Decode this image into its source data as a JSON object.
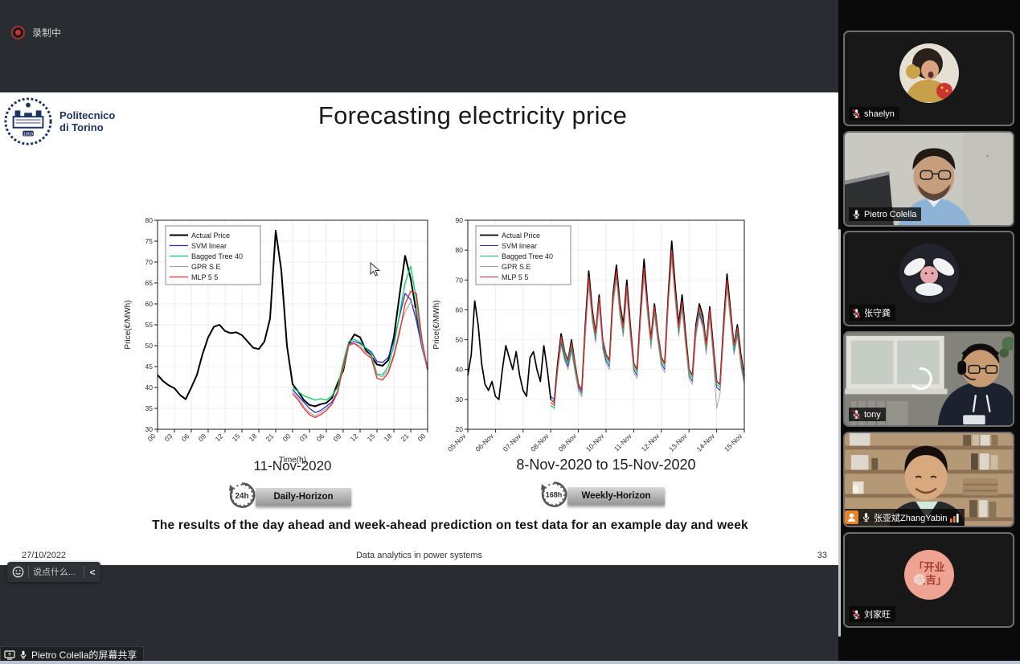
{
  "app": {
    "recording_label": "录制中",
    "screen_share_label": "Pietro Colella的屏幕共享",
    "chat": {
      "placeholder": "说点什么...",
      "collapse_icon": "<"
    }
  },
  "slide": {
    "logo": {
      "line1": "Politecnico",
      "line2": "di Torino",
      "year": "1859"
    },
    "title": "Forecasting electricity price",
    "caption": "The results of the day ahead and week-ahead prediction on test data for an example day and week",
    "figures": {
      "left_label": "11-Nov-2020",
      "right_label": "8-Nov-2020 to 15-Nov-2020",
      "daily_badge": {
        "icon_text": "24h",
        "label": "Daily-Horizon"
      },
      "weekly_badge": {
        "icon_text": "168h",
        "label": "Weekly-Horizon"
      }
    },
    "footer": {
      "date": "27/10/2022",
      "center": "Data analytics in power systems",
      "page": "33"
    }
  },
  "sidebar": {
    "participants": [
      {
        "name": "shaelyn",
        "muted": true,
        "video": false
      },
      {
        "name": "Pietro Colella",
        "muted": false,
        "video": true
      },
      {
        "name": "张守龚",
        "muted": true,
        "video": false
      },
      {
        "name": "tony",
        "muted": true,
        "video": true
      },
      {
        "name": "张亚斌ZhangYabin",
        "muted": false,
        "video": true,
        "host_badge": true,
        "signal_bars": true
      },
      {
        "name": "刘家旺",
        "muted": true,
        "video": false
      }
    ]
  },
  "colors": {
    "actual": "#000000",
    "svm": "#2a2ad4",
    "bagged": "#00d060",
    "gpr": "#a0a0a0",
    "mlp": "#e82c2c",
    "accent_orange": "#e8832a",
    "mute_red": "#e02020"
  },
  "chart_data": [
    {
      "type": "line",
      "title": "",
      "xlabel": "Time(h)",
      "ylabel": "Price(€/MWh)",
      "xlim": [
        0,
        48
      ],
      "ylim": [
        30,
        80
      ],
      "yticks": [
        30,
        35,
        40,
        45,
        50,
        55,
        60,
        65,
        70,
        75,
        80
      ],
      "xticks": [
        0,
        3,
        6,
        9,
        12,
        15,
        18,
        21,
        24,
        27,
        30,
        33,
        36,
        39,
        42,
        45,
        48
      ],
      "xtick_labels": [
        "00",
        "03",
        "06",
        "09",
        "12",
        "15",
        "18",
        "21",
        "00",
        "03",
        "06",
        "09",
        "12",
        "15",
        "18",
        "21",
        "00"
      ],
      "legend_position": "top-left",
      "grid": true,
      "series": [
        {
          "name": "Actual Price",
          "color": "#000000",
          "lw": 2,
          "x0": 0,
          "dx": 1,
          "values": [
            43,
            41.5,
            40.5,
            39.8,
            38.2,
            37.2,
            40,
            43,
            48,
            52,
            54.5,
            55,
            53.5,
            53,
            53.2,
            52.5,
            51,
            49.5,
            49.2,
            51,
            56.5,
            77.5,
            68,
            50,
            40.8,
            39,
            37,
            35.8,
            35.5,
            36,
            36.3,
            37.5,
            41,
            44,
            50.5,
            52.7,
            52,
            49,
            47.5,
            45.5,
            45.2,
            46.5,
            52,
            62,
            71.5,
            66,
            58,
            50,
            44.5
          ]
        },
        {
          "name": "SVM linear",
          "color": "#2a2ad4",
          "lw": 1.3,
          "x0": 24,
          "dx": 1,
          "values": [
            39.5,
            38,
            36.5,
            35,
            34,
            34.5,
            35.5,
            36.5,
            39,
            45,
            50.5,
            51,
            50.5,
            49.5,
            48.5,
            46.2,
            46,
            47.2,
            51,
            57,
            62.5,
            61,
            56,
            49.5,
            44.3
          ]
        },
        {
          "name": "Bagged Tree 40",
          "color": "#00d060",
          "lw": 1.3,
          "x0": 24,
          "dx": 1,
          "values": [
            40,
            39,
            38,
            37.5,
            37,
            37.3,
            37,
            38,
            40,
            46,
            51,
            51.5,
            50.8,
            49.5,
            48,
            43.2,
            43,
            45,
            50,
            57.5,
            65,
            69,
            61,
            51,
            44
          ]
        },
        {
          "name": "GPR S.E",
          "color": "#a0a0a0",
          "lw": 1,
          "x0": 24,
          "dx": 1,
          "values": [
            39,
            37.5,
            35.5,
            34,
            33.2,
            34,
            35,
            36,
            38.5,
            44.5,
            50,
            50.5,
            50,
            48.5,
            47.5,
            43,
            42.5,
            44,
            48,
            54,
            58,
            60.5,
            58.5,
            50,
            43.8
          ]
        },
        {
          "name": "MLP 5 5",
          "color": "#e82c2c",
          "lw": 1.3,
          "x0": 24,
          "dx": 1,
          "values": [
            38.5,
            37,
            35,
            33.5,
            32.8,
            33.5,
            34.5,
            36,
            39,
            45,
            50.3,
            50.5,
            49.5,
            48,
            47,
            42.2,
            41.8,
            43.5,
            47.5,
            53,
            60,
            63,
            62.5,
            51.5,
            44.2
          ]
        }
      ]
    },
    {
      "type": "line",
      "title": "",
      "xlabel": "",
      "ylabel": "Price(€/MWh)",
      "xlim": [
        5,
        15
      ],
      "ylim": [
        20,
        90
      ],
      "yticks": [
        20,
        30,
        40,
        50,
        60,
        70,
        80,
        90
      ],
      "xticks": [
        5,
        6,
        7,
        8,
        9,
        10,
        11,
        12,
        13,
        14,
        15
      ],
      "xtick_labels": [
        "05-Nov",
        "06-Nov",
        "07-Nov",
        "08-Nov",
        "09-Nov",
        "10-Nov",
        "11-Nov",
        "12-Nov",
        "13-Nov",
        "14-Nov",
        "15-Nov"
      ],
      "legend_position": "top-left",
      "grid": true,
      "series": [
        {
          "name": "Actual Price",
          "color": "#000000",
          "lw": 1.7,
          "x0": 5,
          "dx": 0.125,
          "values": [
            38,
            45,
            63,
            55,
            42,
            35,
            33,
            36,
            31,
            30,
            40,
            48,
            44,
            40,
            46,
            38,
            33,
            31,
            44,
            46,
            40,
            36,
            48,
            40,
            30,
            29,
            42,
            52,
            46,
            43,
            50,
            42,
            35,
            33,
            55,
            73,
            60,
            52,
            65,
            50,
            45,
            43,
            65,
            75,
            62,
            55,
            70,
            55,
            42,
            40,
            60,
            77,
            62,
            50,
            62,
            52,
            44,
            42,
            65,
            83,
            68,
            55,
            65,
            52,
            40,
            38,
            55,
            62,
            58,
            48,
            61,
            48,
            36,
            35,
            55,
            72,
            60,
            48,
            55,
            45,
            38
          ]
        },
        {
          "name": "SVM linear",
          "color": "#2a2ad4",
          "lw": 1.1,
          "x0": 8,
          "dx": 0.125,
          "values": [
            31,
            30,
            40,
            49,
            44,
            41,
            47,
            40,
            34,
            32,
            52,
            69,
            57,
            50,
            62,
            48,
            43,
            41,
            62,
            71,
            59,
            52,
            66,
            52,
            40,
            38,
            57,
            72,
            59,
            48,
            59,
            50,
            42,
            40,
            62,
            78,
            64,
            52,
            61,
            49,
            38,
            36,
            52,
            59,
            55,
            46,
            58,
            45,
            34,
            33,
            52,
            68,
            57,
            46,
            52,
            42,
            36
          ]
        },
        {
          "name": "Bagged Tree 40",
          "color": "#00d060",
          "lw": 1.1,
          "x0": 8,
          "dx": 0.125,
          "values": [
            28,
            27,
            40,
            50,
            45,
            42,
            48,
            41,
            33,
            31,
            53,
            70,
            58,
            51,
            63,
            49,
            44,
            42,
            63,
            72,
            60,
            53,
            67,
            53,
            41,
            39,
            58,
            73,
            60,
            49,
            60,
            51,
            43,
            41,
            63,
            79,
            65,
            53,
            62,
            50,
            39,
            37,
            53,
            60,
            56,
            47,
            59,
            46,
            35,
            34,
            53,
            69,
            58,
            47,
            53,
            43,
            37
          ]
        },
        {
          "name": "GPR S.E",
          "color": "#a0a0a0",
          "lw": 0.9,
          "x0": 8,
          "dx": 0.125,
          "values": [
            30,
            29,
            39,
            48,
            43,
            40,
            46,
            39,
            33,
            31,
            51,
            68,
            56,
            49,
            61,
            47,
            42,
            40,
            61,
            70,
            58,
            51,
            65,
            51,
            39,
            37,
            56,
            71,
            58,
            47,
            58,
            49,
            41,
            39,
            61,
            77,
            63,
            51,
            60,
            48,
            37,
            35,
            51,
            58,
            54,
            45,
            57,
            44,
            27,
            32,
            51,
            67,
            56,
            45,
            51,
            41,
            35
          ]
        },
        {
          "name": "MLP 5 5",
          "color": "#e82c2c",
          "lw": 1.1,
          "x0": 8,
          "dx": 0.125,
          "values": [
            29,
            28,
            41,
            51,
            46,
            43,
            49,
            42,
            35,
            33,
            54,
            71,
            59,
            52,
            64,
            50,
            45,
            43,
            64,
            73,
            61,
            54,
            68,
            54,
            42,
            40,
            59,
            74,
            61,
            50,
            61,
            52,
            44,
            42,
            64,
            80,
            66,
            54,
            63,
            51,
            40,
            38,
            54,
            61,
            57,
            48,
            60,
            47,
            36,
            35,
            54,
            70,
            59,
            48,
            54,
            44,
            38
          ]
        }
      ]
    }
  ]
}
